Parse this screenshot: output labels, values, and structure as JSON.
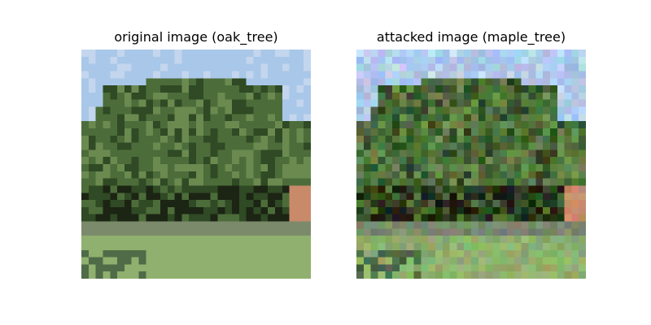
{
  "figure": {
    "panels": [
      {
        "title": "original image (oak_tree)",
        "variant": "original"
      },
      {
        "title": "attacked image (maple_tree)",
        "variant": "attacked"
      }
    ]
  },
  "palette": {
    "sky": "#a9c7e8",
    "sky_light": "#c3d6ee",
    "foliage_dark": "#2f4a24",
    "foliage_mid": "#4c6d3a",
    "foliage_light": "#6a8a50",
    "shadow": "#1c2414",
    "ground_band": "#7c8a6c",
    "grass": "#8fb06e",
    "grass_dark": "#4f6b47",
    "building": "#c98a6a"
  }
}
